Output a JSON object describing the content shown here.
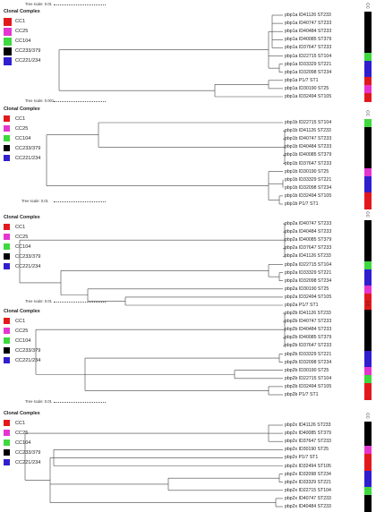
{
  "legend": {
    "title": "Clonal Complex",
    "items": [
      {
        "label": "CC1",
        "color": "#e2191c"
      },
      {
        "label": "CC25",
        "color": "#e535d0"
      },
      {
        "label": "CC104",
        "color": "#3ed93e"
      },
      {
        "label": "CC233/379",
        "color": "#000000"
      },
      {
        "label": "CC221/234",
        "color": "#2f1fcf"
      }
    ]
  },
  "cc_header": "CC",
  "panels": [
    {
      "scale_label": "Tree scale: 0.01",
      "leaves": [
        {
          "label": "pbp1a ID41126 ST233",
          "cc": 3
        },
        {
          "label": "pbp1a ID40747 ST233",
          "cc": 3
        },
        {
          "label": "pbp1a ID40484 ST233",
          "cc": 3
        },
        {
          "label": "pbp1a ID40085 ST379",
          "cc": 3
        },
        {
          "label": "pbp1a ID37647 ST233",
          "cc": 3
        },
        {
          "label": "pbp1a ID22715 ST104",
          "cc": 2
        },
        {
          "label": "pbp1a ID33329 ST221",
          "cc": 4
        },
        {
          "label": "pbp1a ID32098 ST234",
          "cc": 4
        },
        {
          "label": "pbp1a P1/7 ST1",
          "cc": 0
        },
        {
          "label": "pbp1a ID30190 ST25",
          "cc": 1
        },
        {
          "label": "pbp1a ID32494 ST105",
          "cc": 0
        }
      ]
    },
    {
      "scale_label": "Tree scale: 0.001",
      "leaves": [
        {
          "label": "pbp1b ID22715 ST104",
          "cc": 2
        },
        {
          "label": "pbp1b ID41126 ST233",
          "cc": 3
        },
        {
          "label": "pbp1b ID40747 ST233",
          "cc": 3
        },
        {
          "label": "pbp1b ID40484 ST233",
          "cc": 3
        },
        {
          "label": "pbp1b ID40085 ST379",
          "cc": 3
        },
        {
          "label": "pbp1b ID37647 ST233",
          "cc": 3
        },
        {
          "label": "pbp1b ID30190 ST25",
          "cc": 1
        },
        {
          "label": "pbp1b ID33329 ST221",
          "cc": 4
        },
        {
          "label": "pbp1b ID32098 ST234",
          "cc": 4
        },
        {
          "label": "pbp1b ID32494 ST105",
          "cc": 0
        },
        {
          "label": "pbp1b P1/7 ST1",
          "cc": 0
        }
      ]
    },
    {
      "scale_label": "Tree scale: 0.01",
      "leaves": [
        {
          "label": "pbp2a ID40747 ST233",
          "cc": 3
        },
        {
          "label": "pbp2a ID40484 ST233",
          "cc": 3
        },
        {
          "label": "pbp2a ID40085 ST379",
          "cc": 3
        },
        {
          "label": "pbp2a ID37647 ST233",
          "cc": 3
        },
        {
          "label": "pbp2a ID41126 ST233",
          "cc": 3
        },
        {
          "label": "pbp2a ID22715 ST104",
          "cc": 2
        },
        {
          "label": "pbp2a ID33329 ST221",
          "cc": 4
        },
        {
          "label": "pbp2a ID32098 ST234",
          "cc": 4
        },
        {
          "label": "pbp2a ID30190 ST25",
          "cc": 1
        },
        {
          "label": "pbp2a ID32494 ST105",
          "cc": 0
        },
        {
          "label": "pbp2a P1/7 ST1",
          "cc": 0
        }
      ]
    },
    {
      "scale_label": "Tree scale: 0.01",
      "leaves": [
        {
          "label": "pbp2b ID41126 ST233",
          "cc": 3
        },
        {
          "label": "pbp2b ID40747 ST233",
          "cc": 3
        },
        {
          "label": "pbp2b ID40484 ST233",
          "cc": 3
        },
        {
          "label": "pbp2b ID40085 ST379",
          "cc": 3
        },
        {
          "label": "pbp2b ID37647 ST233",
          "cc": 3
        },
        {
          "label": "pbp2b ID33329 ST221",
          "cc": 4
        },
        {
          "label": "pbp2b ID32098 ST234",
          "cc": 4
        },
        {
          "label": "pbp2b ID30190 ST25",
          "cc": 1
        },
        {
          "label": "pbp2b ID22715 ST104",
          "cc": 2
        },
        {
          "label": "pbp2b ID32494 ST105",
          "cc": 0
        },
        {
          "label": "pbp2b P1/7 ST1",
          "cc": 0
        }
      ]
    },
    {
      "scale_label": "Tree scale: 0.01",
      "leaves": [
        {
          "label": "pbp2x ID41126 ST233",
          "cc": 3
        },
        {
          "label": "pbp2x ID40085 ST379",
          "cc": 3
        },
        {
          "label": "pbp2x ID37647 ST233",
          "cc": 3
        },
        {
          "label": "pbp2x ID30190 ST25",
          "cc": 1
        },
        {
          "label": "pbp2x P1/7 ST1",
          "cc": 0
        },
        {
          "label": "pbp2x ID32494 ST105",
          "cc": 0
        },
        {
          "label": "pbp2x ID32098 ST234",
          "cc": 4
        },
        {
          "label": "pbp2x ID33329 ST221",
          "cc": 4
        },
        {
          "label": "pbp2x ID22715 ST104",
          "cc": 2
        },
        {
          "label": "pbp2x ID40747 ST233",
          "cc": 3
        },
        {
          "label": "pbp2x ID40484 ST233",
          "cc": 3
        }
      ]
    }
  ]
}
